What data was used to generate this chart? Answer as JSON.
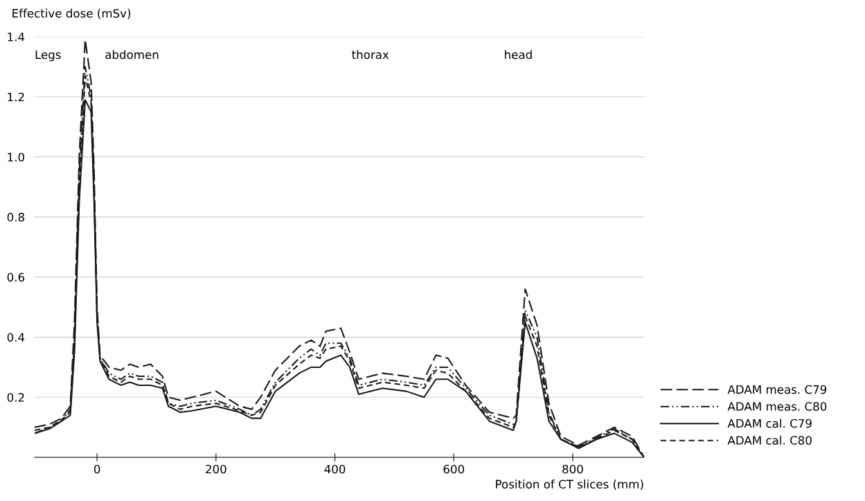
{
  "chart_data": {
    "type": "line",
    "ylabel": "Effective dose (mSv)",
    "xlabel": "Position of CT slices (mm)",
    "x": [
      -105,
      -80,
      -60,
      -45,
      -38,
      -30,
      -20,
      -10,
      -5,
      0,
      5,
      20,
      40,
      55,
      70,
      90,
      110,
      120,
      140,
      160,
      200,
      240,
      260,
      275,
      300,
      340,
      360,
      375,
      385,
      410,
      425,
      440,
      480,
      520,
      550,
      570,
      590,
      620,
      660,
      700,
      705,
      720,
      740,
      760,
      780,
      810,
      840,
      870,
      900,
      920
    ],
    "series": [
      {
        "name": "ADAM meas. C79",
        "color": "#1a1a1a",
        "line_style": "dashed",
        "values": [
          0.1,
          0.11,
          0.13,
          0.17,
          0.45,
          1.0,
          1.39,
          1.25,
          0.95,
          0.5,
          0.34,
          0.3,
          0.29,
          0.31,
          0.3,
          0.31,
          0.27,
          0.2,
          0.19,
          0.2,
          0.22,
          0.17,
          0.16,
          0.2,
          0.29,
          0.37,
          0.39,
          0.37,
          0.42,
          0.43,
          0.35,
          0.26,
          0.28,
          0.27,
          0.26,
          0.34,
          0.33,
          0.24,
          0.15,
          0.13,
          0.14,
          0.56,
          0.44,
          0.18,
          0.07,
          0.04,
          0.07,
          0.1,
          0.07,
          0.0
        ]
      },
      {
        "name": "ADAM meas. C80",
        "color": "#1a1a1a",
        "line_style": "dashdot",
        "values": [
          0.08,
          0.1,
          0.12,
          0.16,
          0.4,
          0.95,
          1.3,
          1.2,
          0.9,
          0.48,
          0.33,
          0.28,
          0.26,
          0.28,
          0.27,
          0.27,
          0.25,
          0.18,
          0.17,
          0.18,
          0.19,
          0.16,
          0.14,
          0.16,
          0.25,
          0.33,
          0.36,
          0.34,
          0.38,
          0.38,
          0.33,
          0.24,
          0.26,
          0.25,
          0.24,
          0.3,
          0.3,
          0.23,
          0.14,
          0.11,
          0.12,
          0.49,
          0.4,
          0.15,
          0.06,
          0.035,
          0.065,
          0.095,
          0.06,
          0.0
        ]
      },
      {
        "name": "ADAM cal. C79",
        "color": "#1a1a1a",
        "line_style": "solid",
        "values": [
          0.08,
          0.095,
          0.12,
          0.14,
          0.35,
          0.85,
          1.19,
          1.15,
          0.85,
          0.45,
          0.32,
          0.26,
          0.24,
          0.25,
          0.24,
          0.24,
          0.23,
          0.17,
          0.15,
          0.155,
          0.17,
          0.15,
          0.13,
          0.13,
          0.22,
          0.28,
          0.3,
          0.3,
          0.32,
          0.34,
          0.3,
          0.21,
          0.23,
          0.22,
          0.2,
          0.26,
          0.26,
          0.22,
          0.12,
          0.09,
          0.12,
          0.45,
          0.33,
          0.12,
          0.06,
          0.03,
          0.06,
          0.08,
          0.05,
          0.0
        ]
      },
      {
        "name": "ADAM cal. C80",
        "color": "#1a1a1a",
        "line_style": "dotted",
        "values": [
          0.09,
          0.1,
          0.125,
          0.15,
          0.38,
          0.9,
          1.27,
          1.18,
          0.88,
          0.47,
          0.33,
          0.27,
          0.25,
          0.27,
          0.26,
          0.26,
          0.24,
          0.18,
          0.16,
          0.17,
          0.18,
          0.155,
          0.14,
          0.15,
          0.24,
          0.31,
          0.34,
          0.33,
          0.36,
          0.37,
          0.32,
          0.23,
          0.25,
          0.24,
          0.23,
          0.29,
          0.28,
          0.22,
          0.13,
          0.1,
          0.12,
          0.47,
          0.37,
          0.14,
          0.06,
          0.035,
          0.06,
          0.09,
          0.06,
          0.0
        ]
      }
    ],
    "xlim": [
      -105,
      920
    ],
    "xticks": [
      0,
      200,
      400,
      600,
      800
    ],
    "ylim": [
      0,
      1.4
    ],
    "yticks": [
      {
        "value": 0,
        "label": null
      },
      0.2,
      0.4,
      0.6,
      0.8,
      {
        "value": 1.0,
        "label": "1.0"
      },
      1.2,
      1.4
    ],
    "grid": "y",
    "legend": "bottom right",
    "annotations": [
      "Legs",
      "abdomen",
      "thorax",
      "head"
    ]
  }
}
